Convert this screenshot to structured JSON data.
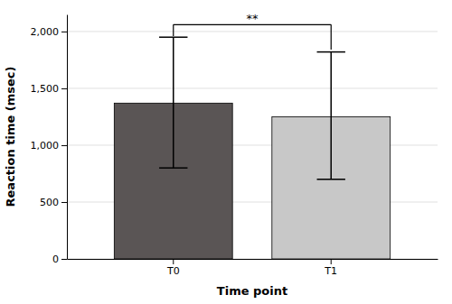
{
  "chart_data": {
    "type": "bar",
    "categories": [
      "T0",
      "T1"
    ],
    "values": [
      1370,
      1250
    ],
    "colors": [
      "#5a5555",
      "#c8c8c8"
    ],
    "error_lower": [
      800,
      700
    ],
    "error_upper": [
      1950,
      1820
    ],
    "xlabel": "Time point",
    "ylabel": "Reaction time (msec)",
    "ylim": [
      0,
      2150
    ],
    "yticks": [
      0,
      500,
      {
        "value": 1000,
        "label": "1,000"
      },
      {
        "value": 1500,
        "label": "1,500"
      },
      {
        "value": 2000,
        "label": "2,000"
      }
    ],
    "grid": true,
    "annotations": [
      {
        "text": "**",
        "x": [
          "T0",
          "T1"
        ],
        "y": 2060,
        "y_ends": [
          1960,
          1840
        ]
      }
    ]
  }
}
